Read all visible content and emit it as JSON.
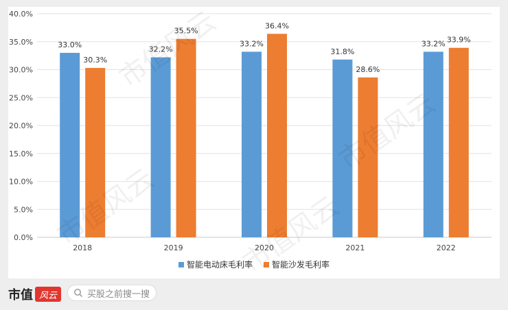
{
  "chart_data": {
    "type": "bar",
    "categories": [
      "2018",
      "2019",
      "2020",
      "2021",
      "2022"
    ],
    "series": [
      {
        "name": "智能电动床毛利率",
        "values": [
          33.0,
          32.2,
          33.2,
          31.8,
          33.2
        ],
        "color": "#5b9bd5"
      },
      {
        "name": "智能沙发毛利率",
        "values": [
          30.3,
          35.5,
          36.4,
          28.6,
          33.9
        ],
        "color": "#ed7d31"
      }
    ],
    "data_labels": [
      [
        "33.0%",
        "32.2%",
        "33.2%",
        "31.8%",
        "33.2%"
      ],
      [
        "30.3%",
        "35.5%",
        "36.4%",
        "28.6%",
        "33.9%"
      ]
    ],
    "yticks": [
      "0.0%",
      "5.0%",
      "10.0%",
      "15.0%",
      "20.0%",
      "25.0%",
      "30.0%",
      "35.0%",
      "40.0%"
    ],
    "ylim": [
      0,
      40
    ],
    "grid": true,
    "legend": "bottom-center",
    "title": "",
    "xlabel": "",
    "ylabel": ""
  },
  "footer": {
    "brand": "市值",
    "brand_seal": "风云",
    "search_placeholder": "买股之前搜一搜",
    "search_icon": "search-icon"
  },
  "watermark": "市值风云"
}
